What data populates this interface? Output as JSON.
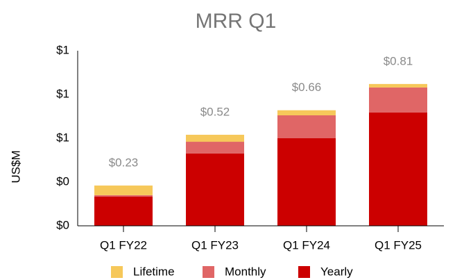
{
  "chart_data": {
    "type": "stacked_bar",
    "title": "MRR Q1",
    "y_label": "US$M",
    "categories": [
      "Q1 FY22",
      "Q1 FY23",
      "Q1 FY24",
      "Q1 FY25"
    ],
    "series": [
      {
        "name": "Yearly",
        "color": "#cc0000",
        "values": [
          0.167,
          0.413,
          0.5,
          0.647
        ]
      },
      {
        "name": "Monthly",
        "color": "#e06666",
        "values": [
          0.008,
          0.067,
          0.131,
          0.143
        ]
      },
      {
        "name": "Lifetime",
        "color": "#f6c85a",
        "values": [
          0.055,
          0.04,
          0.029,
          0.02
        ]
      }
    ],
    "totals": [
      0.23,
      0.52,
      0.66,
      0.81
    ],
    "total_labels": [
      "$0.23",
      "$0.52",
      "$0.66",
      "$0.81"
    ],
    "legend_order": [
      "Lifetime",
      "Monthly",
      "Yearly"
    ],
    "ylim": [
      0,
      1
    ],
    "yticks": [
      {
        "value": 0,
        "label": "$0"
      },
      {
        "value": 0.25,
        "label": "$0"
      },
      {
        "value": 0.5,
        "label": "$1"
      },
      {
        "value": 0.75,
        "label": "$1"
      },
      {
        "value": 1,
        "label": "$1"
      }
    ],
    "grid": false,
    "legend": "bottom"
  }
}
